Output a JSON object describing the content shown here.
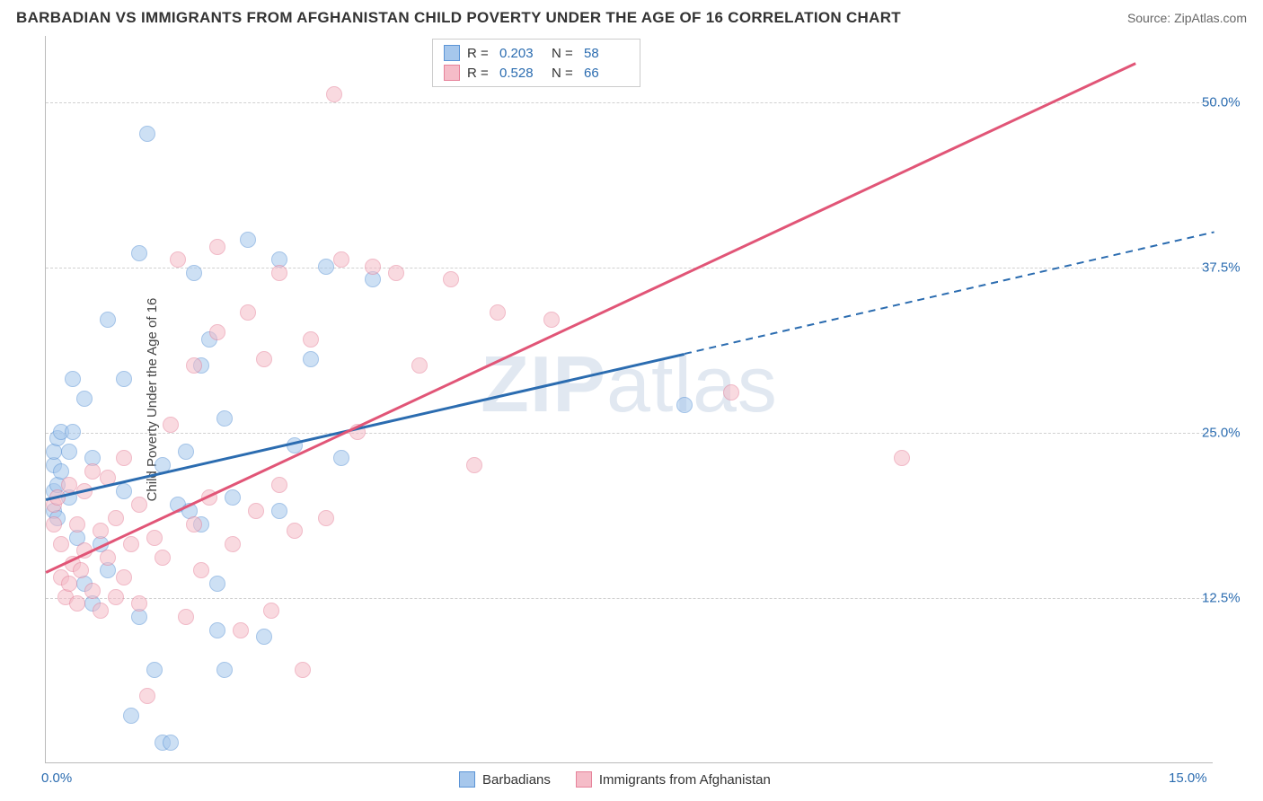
{
  "header": {
    "title": "BARBADIAN VS IMMIGRANTS FROM AFGHANISTAN CHILD POVERTY UNDER THE AGE OF 16 CORRELATION CHART",
    "source": "Source: ZipAtlas.com"
  },
  "chart": {
    "type": "scatter",
    "y_axis_label": "Child Poverty Under the Age of 16",
    "background_color": "#ffffff",
    "grid_color": "#d0d0d0",
    "axis_color": "#bbbbbb",
    "tick_color": "#2b6cb0",
    "tick_fontsize": 15,
    "xlim": [
      0,
      15
    ],
    "ylim": [
      0,
      55
    ],
    "xticks": [
      {
        "value": 0.0,
        "label": "0.0%"
      },
      {
        "value": 15.0,
        "label": "15.0%"
      }
    ],
    "yticks": [
      {
        "value": 12.5,
        "label": "12.5%"
      },
      {
        "value": 25.0,
        "label": "25.0%"
      },
      {
        "value": 37.5,
        "label": "37.5%"
      },
      {
        "value": 50.0,
        "label": "50.0%"
      }
    ],
    "watermark": "ZIPatlas",
    "point_radius": 9,
    "point_opacity": 0.55,
    "series": [
      {
        "name": "Barbadians",
        "key": "barbadians",
        "fill": "#a6c7ec",
        "stroke": "#5b94d6",
        "R": "0.203",
        "N": "58",
        "trend": {
          "x1": 0,
          "y1": 20.0,
          "x2": 8.2,
          "y2": 31.0,
          "color": "#2b6cb0",
          "width": 2.5,
          "dash": false
        },
        "trend_ext": {
          "x1": 8.2,
          "y1": 31.0,
          "x2": 15.0,
          "y2": 40.2,
          "color": "#2b6cb0",
          "width": 2,
          "dash": true
        },
        "points": [
          [
            0.1,
            22.5
          ],
          [
            0.1,
            20.5
          ],
          [
            0.15,
            21.0
          ],
          [
            0.1,
            19.0
          ],
          [
            0.15,
            18.5
          ],
          [
            0.1,
            23.5
          ],
          [
            0.15,
            24.5
          ],
          [
            0.2,
            25.0
          ],
          [
            0.2,
            22.0
          ],
          [
            0.3,
            23.5
          ],
          [
            0.3,
            20.0
          ],
          [
            0.35,
            29.0
          ],
          [
            0.35,
            25.0
          ],
          [
            0.4,
            17.0
          ],
          [
            0.5,
            27.5
          ],
          [
            0.5,
            13.5
          ],
          [
            0.6,
            23.0
          ],
          [
            0.6,
            12.0
          ],
          [
            0.7,
            16.5
          ],
          [
            0.8,
            14.5
          ],
          [
            0.8,
            33.5
          ],
          [
            1.0,
            29.0
          ],
          [
            1.0,
            20.5
          ],
          [
            1.1,
            3.5
          ],
          [
            1.2,
            38.5
          ],
          [
            1.2,
            11.0
          ],
          [
            1.3,
            47.5
          ],
          [
            1.4,
            7.0
          ],
          [
            1.5,
            22.5
          ],
          [
            1.5,
            1.5
          ],
          [
            1.6,
            1.5
          ],
          [
            1.7,
            19.5
          ],
          [
            1.8,
            23.5
          ],
          [
            1.85,
            19.0
          ],
          [
            1.9,
            37.0
          ],
          [
            2.0,
            18.0
          ],
          [
            2.0,
            30.0
          ],
          [
            2.1,
            32.0
          ],
          [
            2.2,
            13.5
          ],
          [
            2.2,
            10.0
          ],
          [
            2.3,
            7.0
          ],
          [
            2.3,
            26.0
          ],
          [
            2.4,
            20.0
          ],
          [
            2.6,
            39.5
          ],
          [
            2.8,
            9.5
          ],
          [
            3.0,
            38.0
          ],
          [
            3.0,
            19.0
          ],
          [
            3.2,
            24.0
          ],
          [
            3.4,
            30.5
          ],
          [
            3.6,
            37.5
          ],
          [
            3.8,
            23.0
          ],
          [
            4.2,
            36.5
          ],
          [
            8.2,
            27.0
          ]
        ]
      },
      {
        "name": "Immigrants from Afghanistan",
        "key": "immigrants",
        "fill": "#f5bcc8",
        "stroke": "#e6829a",
        "R": "0.528",
        "N": "66",
        "trend": {
          "x1": 0,
          "y1": 14.5,
          "x2": 14.0,
          "y2": 53.0,
          "color": "#e15577",
          "width": 2.5,
          "dash": false
        },
        "points": [
          [
            0.1,
            18.0
          ],
          [
            0.1,
            19.5
          ],
          [
            0.15,
            20.0
          ],
          [
            0.2,
            16.5
          ],
          [
            0.2,
            14.0
          ],
          [
            0.25,
            12.5
          ],
          [
            0.3,
            21.0
          ],
          [
            0.3,
            13.5
          ],
          [
            0.35,
            15.0
          ],
          [
            0.4,
            12.0
          ],
          [
            0.4,
            18.0
          ],
          [
            0.45,
            14.5
          ],
          [
            0.5,
            20.5
          ],
          [
            0.5,
            16.0
          ],
          [
            0.6,
            22.0
          ],
          [
            0.6,
            13.0
          ],
          [
            0.7,
            11.5
          ],
          [
            0.7,
            17.5
          ],
          [
            0.8,
            15.5
          ],
          [
            0.8,
            21.5
          ],
          [
            0.9,
            12.5
          ],
          [
            0.9,
            18.5
          ],
          [
            1.0,
            14.0
          ],
          [
            1.0,
            23.0
          ],
          [
            1.1,
            16.5
          ],
          [
            1.2,
            12.0
          ],
          [
            1.2,
            19.5
          ],
          [
            1.3,
            5.0
          ],
          [
            1.4,
            17.0
          ],
          [
            1.5,
            15.5
          ],
          [
            1.6,
            25.5
          ],
          [
            1.7,
            38.0
          ],
          [
            1.8,
            11.0
          ],
          [
            1.9,
            18.0
          ],
          [
            1.9,
            30.0
          ],
          [
            2.0,
            14.5
          ],
          [
            2.1,
            20.0
          ],
          [
            2.2,
            39.0
          ],
          [
            2.2,
            32.5
          ],
          [
            2.4,
            16.5
          ],
          [
            2.5,
            10.0
          ],
          [
            2.6,
            34.0
          ],
          [
            2.7,
            19.0
          ],
          [
            2.8,
            30.5
          ],
          [
            2.9,
            11.5
          ],
          [
            3.0,
            21.0
          ],
          [
            3.0,
            37.0
          ],
          [
            3.2,
            17.5
          ],
          [
            3.3,
            7.0
          ],
          [
            3.4,
            32.0
          ],
          [
            3.6,
            18.5
          ],
          [
            3.7,
            50.5
          ],
          [
            3.8,
            38.0
          ],
          [
            4.0,
            25.0
          ],
          [
            4.2,
            37.5
          ],
          [
            4.5,
            37.0
          ],
          [
            4.8,
            30.0
          ],
          [
            5.2,
            36.5
          ],
          [
            5.5,
            22.5
          ],
          [
            5.8,
            34.0
          ],
          [
            6.5,
            33.5
          ],
          [
            8.8,
            28.0
          ],
          [
            11.0,
            23.0
          ]
        ]
      }
    ],
    "legend_top": {
      "r_label": "R =",
      "n_label": "N ="
    },
    "legend_bottom_labels": [
      "Barbadians",
      "Immigrants from Afghanistan"
    ]
  }
}
